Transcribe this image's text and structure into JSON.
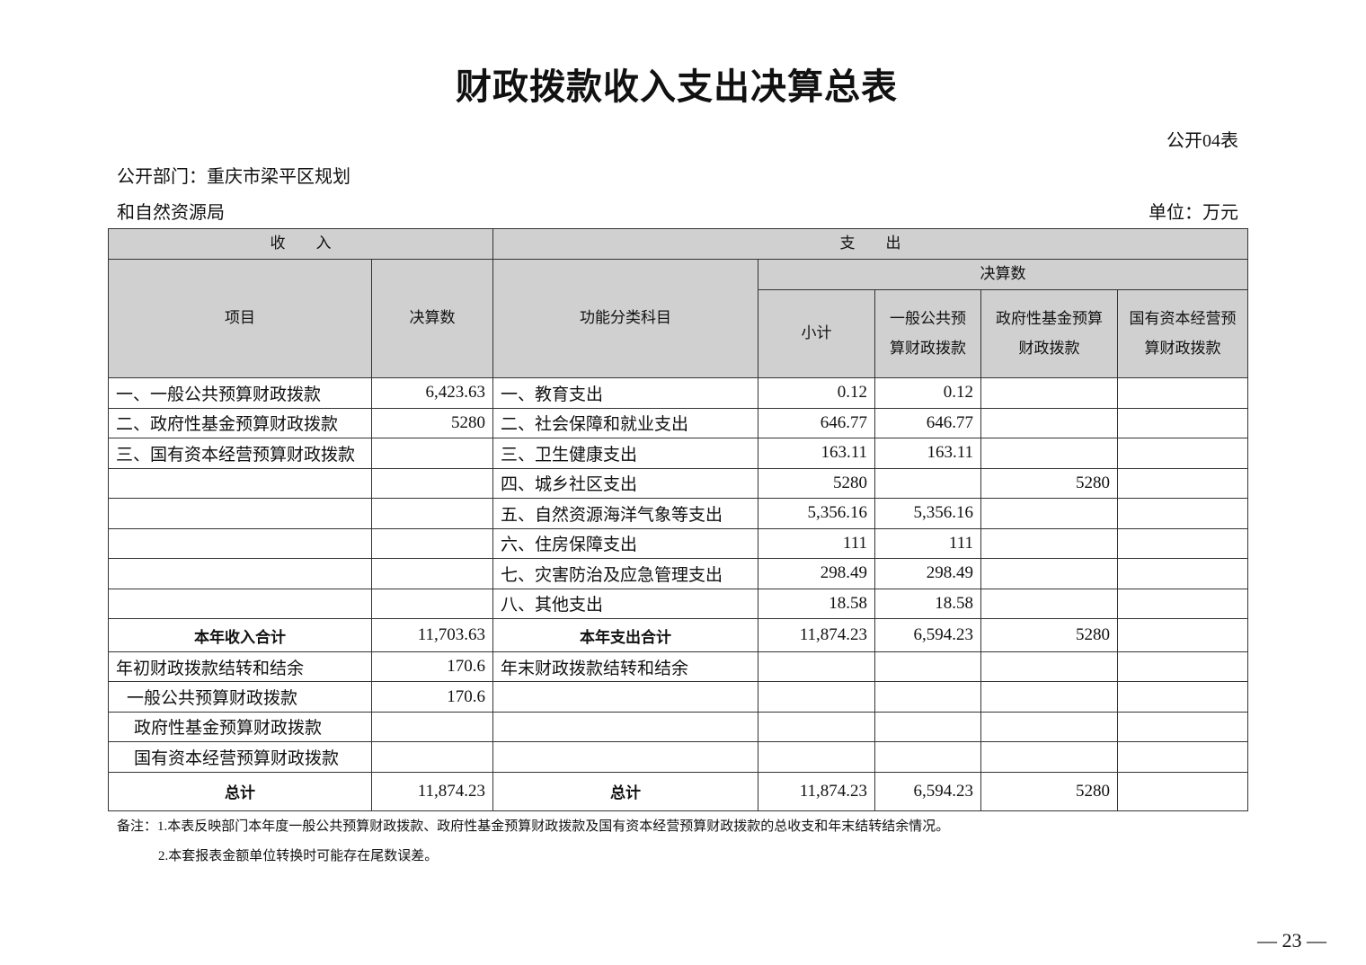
{
  "title": "财政拨款收入支出决算总表",
  "table_no": "公开04表",
  "dept_line1": "公开部门：重庆市梁平区规划",
  "dept_line2": "和自然资源局",
  "unit": "单位：万元",
  "header": {
    "income": "收　　入",
    "expense": "支　　出",
    "item": "项目",
    "amount": "决算数",
    "function": "功能分类科目",
    "final": "决算数",
    "subtotal": "小计",
    "general": "一般公共预算财政拨款",
    "fund": "政府性基金预算财政拨款",
    "state": "国有资本经营预算财政拨款"
  },
  "rows": [
    [
      "一、一般公共预算财政拨款",
      "6,423.63",
      "一、教育支出",
      "0.12",
      "0.12",
      "",
      ""
    ],
    [
      "二、政府性基金预算财政拨款",
      "5280",
      "二、社会保障和就业支出",
      "646.77",
      "646.77",
      "",
      ""
    ],
    [
      "三、国有资本经营预算财政拨款",
      "",
      "三、卫生健康支出",
      "163.11",
      "163.11",
      "",
      ""
    ],
    [
      "",
      "",
      "四、城乡社区支出",
      "5280",
      "",
      "5280",
      ""
    ],
    [
      "",
      "",
      "五、自然资源海洋气象等支出",
      "5,356.16",
      "5,356.16",
      "",
      ""
    ],
    [
      "",
      "",
      "六、住房保障支出",
      "111",
      "111",
      "",
      ""
    ],
    [
      "",
      "",
      "七、灾害防治及应急管理支出",
      "298.49",
      "298.49",
      "",
      ""
    ],
    [
      "",
      "",
      "八、其他支出",
      "18.58",
      "18.58",
      "",
      ""
    ]
  ],
  "year_total": [
    "本年收入合计",
    "11,703.63",
    "本年支出合计",
    "11,874.23",
    "6,594.23",
    "5280",
    ""
  ],
  "carry_rows": [
    [
      "年初财政拨款结转和结余",
      "170.6",
      "年末财政拨款结转和结余",
      "",
      "",
      "",
      ""
    ],
    [
      "一般公共预算财政拨款",
      "170.6",
      "",
      "",
      "",
      "",
      ""
    ],
    [
      "政府性基金预算财政拨款",
      "",
      "",
      "",
      "",
      "",
      ""
    ],
    [
      "国有资本经营预算财政拨款",
      "",
      "",
      "",
      "",
      "",
      ""
    ]
  ],
  "grand_total": [
    "总计",
    "11,874.23",
    "总计",
    "11,874.23",
    "6,594.23",
    "5280",
    ""
  ],
  "notes": [
    "备注：1.本表反映部门本年度一般公共预算财政拨款、政府性基金预算财政拨款及国有资本经营预算财政拨款的总收支和年末结转结余情况。",
    "2.本套报表金额单位转换时可能存在尾数误差。"
  ],
  "page_number": "— 23 —"
}
